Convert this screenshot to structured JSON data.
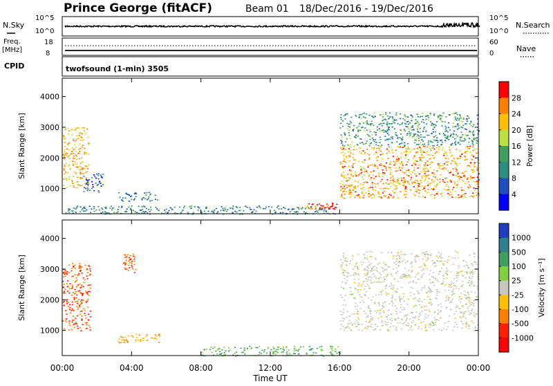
{
  "header": {
    "station": "Prince George (fitACF)",
    "beam": "Beam 01",
    "date_range": "18/Dec/2016 - 19/Dec/2016"
  },
  "noise_panel": {
    "label": "N.Sky",
    "right_label": "N.Search",
    "y_ticks": [
      "10^5",
      "10^0"
    ],
    "right_ticks": [
      "10^5",
      "10^0"
    ],
    "line_color": "#000000"
  },
  "freq_panel": {
    "label_line1": "Freq.",
    "label_line2": "[MHz]",
    "y_ticks": [
      "18",
      "8"
    ],
    "right_label": "Nave",
    "right_ticks": [
      "60",
      "0"
    ]
  },
  "cpid_panel": {
    "label": "CPID",
    "program": "twofsound (1-min) 3505"
  },
  "chart_data": [
    {
      "type": "heatmap",
      "title": "",
      "xlabel": "",
      "ylabel": "Slant Range [km]",
      "parameter": "Power",
      "colorbar_label": "Power [dB]",
      "colorbar_ticks": [
        "28",
        "24",
        "20",
        "16",
        "12",
        "8",
        "4"
      ],
      "colorbar_colors": [
        "#ff0000",
        "#ff7f00",
        "#ffbf00",
        "#bfdf3f",
        "#3f9f5f",
        "#2a8f7f",
        "#1f4fbf",
        "#0000ff"
      ],
      "x_ticks": [
        "00:00",
        "04:00",
        "08:00",
        "12:00",
        "16:00",
        "20:00",
        "00:00"
      ],
      "xlim_hours": [
        0,
        24
      ],
      "y_ticks": [
        "4000",
        "3000",
        "2000",
        "1000"
      ],
      "ylim_km": [
        180,
        4600
      ],
      "scatter_regions": [
        {
          "t": [
            0.0,
            1.5
          ],
          "r": [
            1000,
            3000
          ],
          "value_db": 22
        },
        {
          "t": [
            1.2,
            2.4
          ],
          "r": [
            900,
            1500
          ],
          "value_db": 6
        },
        {
          "t": [
            3.2,
            5.5
          ],
          "r": [
            600,
            900
          ],
          "value_db": 10
        },
        {
          "t": [
            0.0,
            16.0
          ],
          "r": [
            180,
            450
          ],
          "value_db": 10
        },
        {
          "t": [
            14.0,
            15.8
          ],
          "r": [
            350,
            550
          ],
          "value_db": 28
        },
        {
          "t": [
            16.0,
            24.0
          ],
          "r": [
            700,
            2400
          ],
          "value_db": 24
        },
        {
          "t": [
            16.0,
            24.0
          ],
          "r": [
            2400,
            3500
          ],
          "value_db": 12
        }
      ]
    },
    {
      "type": "heatmap",
      "title": "",
      "xlabel": "Time UT",
      "ylabel": "Slant Range [km]",
      "parameter": "Velocity",
      "colorbar_label": "Velocity [m s⁻¹]",
      "colorbar_ticks": [
        "1000",
        "500",
        "100",
        "25",
        "-25",
        "-100",
        "-500",
        "-1000"
      ],
      "colorbar_colors": [
        "#1f3fbf",
        "#2f7f8f",
        "#3f9f5f",
        "#7fcf3f",
        "#c8c8c0",
        "#ffbf00",
        "#ff7f00",
        "#ff2000",
        "#ff0000"
      ],
      "x_ticks": [
        "00:00",
        "04:00",
        "08:00",
        "12:00",
        "16:00",
        "20:00",
        "00:00"
      ],
      "xlim_hours": [
        0,
        24
      ],
      "y_ticks": [
        "4000",
        "3000",
        "2000",
        "1000"
      ],
      "ylim_km": [
        180,
        4600
      ],
      "scatter_regions": [
        {
          "t": [
            0.0,
            1.6
          ],
          "r": [
            1000,
            3200
          ],
          "value_ms": -500
        },
        {
          "t": [
            3.2,
            5.6
          ],
          "r": [
            600,
            900
          ],
          "value_ms": -100
        },
        {
          "t": [
            3.5,
            4.2
          ],
          "r": [
            2900,
            3500
          ],
          "value_ms": -500
        },
        {
          "t": [
            8.0,
            16.0
          ],
          "r": [
            180,
            500
          ],
          "value_ms": 100
        },
        {
          "t": [
            16.0,
            24.0
          ],
          "r": [
            1000,
            3600
          ],
          "value_ms": 0
        }
      ]
    }
  ]
}
